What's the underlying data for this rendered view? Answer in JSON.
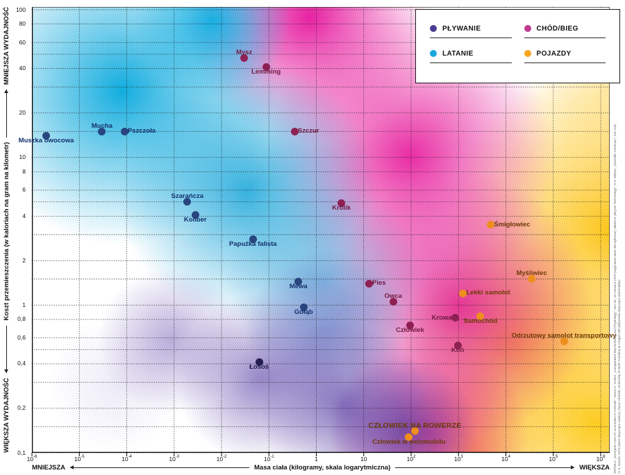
{
  "chart_data": {
    "type": "scatter",
    "title": "",
    "x_axis": {
      "label": "Masa ciała (kilogramy, skala logarytmiczna)",
      "arrow_min_label": "MNIEJSZA",
      "arrow_max_label": "WIĘKSZA",
      "scale": "log",
      "log_range": [
        -6,
        6
      ],
      "ticks": [
        {
          "base": "10",
          "exp": "-6",
          "log": -6
        },
        {
          "base": "10",
          "exp": "-5",
          "log": -5
        },
        {
          "base": "10",
          "exp": "-4",
          "log": -4
        },
        {
          "base": "10",
          "exp": "-3",
          "log": -3
        },
        {
          "base": "10",
          "exp": "-2",
          "log": -2
        },
        {
          "base": "10",
          "exp": "-1",
          "log": -1
        },
        {
          "base": "1",
          "exp": "",
          "log": 0
        },
        {
          "base": "10",
          "exp": "",
          "log": 1
        },
        {
          "base": "10",
          "exp": "2",
          "log": 2
        },
        {
          "base": "10",
          "exp": "3",
          "log": 3
        },
        {
          "base": "10",
          "exp": "4",
          "log": 4
        },
        {
          "base": "10",
          "exp": "5",
          "log": 5
        },
        {
          "base": "10",
          "exp": "6",
          "log": 6
        }
      ]
    },
    "y_axis": {
      "label": "Koszt przemieszczenia (w kaloriach na gram na kilometr)",
      "arrow_top_label": "MNIEJSZA WYDAJNOŚĆ",
      "arrow_bottom_label": "WIĘKSZA WYDAJNOŚĆ",
      "scale": "log",
      "range": [
        0.1,
        100
      ],
      "ticks": [
        {
          "label": "100",
          "value": 100
        },
        {
          "label": "80",
          "value": 80
        },
        {
          "label": "60",
          "value": 60
        },
        {
          "label": "40",
          "value": 40
        },
        {
          "label": "20",
          "value": 20
        },
        {
          "label": "10",
          "value": 10
        },
        {
          "label": "8",
          "value": 8
        },
        {
          "label": "6",
          "value": 6
        },
        {
          "label": "4",
          "value": 4
        },
        {
          "label": "2",
          "value": 2
        },
        {
          "label": "1",
          "value": 1
        },
        {
          "label": "0,8",
          "value": 0.8
        },
        {
          "label": "0,6",
          "value": 0.6
        },
        {
          "label": "0,4",
          "value": 0.4
        },
        {
          "label": "0,2",
          "value": 0.2
        },
        {
          "label": "0,1",
          "value": 0.1
        }
      ],
      "grid_values": [
        100,
        80,
        60,
        50,
        40,
        30,
        20,
        15,
        10,
        8,
        6,
        5,
        4,
        3,
        2,
        1.5,
        1,
        0.8,
        0.6,
        0.5,
        0.4,
        0.3,
        0.2,
        0.15,
        0.1
      ]
    },
    "categories": [
      {
        "id": "plywanie",
        "label": "PŁYWANIE",
        "legend_color": "#4c3d91",
        "dot_color": "#23204f",
        "label_color": "#1d1a47"
      },
      {
        "id": "chod-bieg",
        "label": "CHÓD/BIEG",
        "legend_color": "#c23b92",
        "dot_color": "#8e2053",
        "label_color": "#701a42"
      },
      {
        "id": "latanie",
        "label": "LATANIE",
        "legend_color": "#18a6dc",
        "dot_color": "#28457f",
        "label_color": "#14306b"
      },
      {
        "id": "pojazdy",
        "label": "POJAZDY",
        "legend_color": "#f8a61e",
        "dot_color": "#ee8f1d",
        "label_color": "#6e3a07"
      }
    ],
    "points": [
      {
        "name": "Muszka owocowa",
        "mass_kg": 2e-06,
        "cost": 14,
        "category": "latanie",
        "label_pos": "below"
      },
      {
        "name": "Mucha",
        "mass_kg": 3e-05,
        "cost": 15,
        "category": "latanie",
        "label_pos": "above"
      },
      {
        "name": "Pszczoła",
        "mass_kg": 9e-05,
        "cost": 15,
        "category": "latanie",
        "label_pos": "right"
      },
      {
        "name": "Szarańcza",
        "mass_kg": 0.0019,
        "cost": 5.0,
        "category": "latanie",
        "label_pos": "above"
      },
      {
        "name": "Koliber",
        "mass_kg": 0.0028,
        "cost": 4.1,
        "category": "latanie",
        "label_pos": "below"
      },
      {
        "name": "Papużka falista",
        "mass_kg": 0.046,
        "cost": 2.8,
        "category": "latanie",
        "label_pos": "below"
      },
      {
        "name": "Mewa",
        "mass_kg": 0.42,
        "cost": 1.45,
        "category": "latanie",
        "label_pos": "below"
      },
      {
        "name": "Gołąb",
        "mass_kg": 0.54,
        "cost": 0.97,
        "category": "latanie",
        "label_pos": "below"
      },
      {
        "name": "Mysz",
        "mass_kg": 0.03,
        "cost": 47,
        "category": "chod-bieg",
        "label_pos": "above"
      },
      {
        "name": "Lemming",
        "mass_kg": 0.087,
        "cost": 41,
        "category": "chod-bieg",
        "label_pos": "below"
      },
      {
        "name": "Szczur",
        "mass_kg": 0.35,
        "cost": 15,
        "category": "chod-bieg",
        "label_pos": "right"
      },
      {
        "name": "Królik",
        "mass_kg": 3.4,
        "cost": 4.9,
        "category": "chod-bieg",
        "label_pos": "below"
      },
      {
        "name": "Pies",
        "mass_kg": 13,
        "cost": 1.4,
        "category": "chod-bieg",
        "label_pos": "right"
      },
      {
        "name": "Owca",
        "mass_kg": 42,
        "cost": 1.05,
        "category": "chod-bieg",
        "label_pos": "above"
      },
      {
        "name": "Człowiek",
        "mass_kg": 95,
        "cost": 0.73,
        "category": "chod-bieg",
        "label_pos": "below"
      },
      {
        "name": "Krowa",
        "mass_kg": 840,
        "cost": 0.82,
        "category": "chod-bieg",
        "label_pos": "left"
      },
      {
        "name": "Koń",
        "mass_kg": 960,
        "cost": 0.53,
        "category": "chod-bieg",
        "label_pos": "below"
      },
      {
        "name": "Łosoś",
        "mass_kg": 0.062,
        "cost": 0.41,
        "category": "plywanie",
        "label_pos": "below"
      },
      {
        "name": "Śmigłowiec",
        "mass_kg": 4800,
        "cost": 3.5,
        "category": "pojazdy",
        "label_pos": "right"
      },
      {
        "name": "Lekki samolot",
        "mass_kg": 1250,
        "cost": 1.2,
        "category": "pojazdy",
        "label_pos": "right"
      },
      {
        "name": "Myśliwiec",
        "mass_kg": 35000,
        "cost": 1.5,
        "category": "pojazdy",
        "label_pos": "above"
      },
      {
        "name": "Samochód",
        "mass_kg": 2900,
        "cost": 0.84,
        "category": "pojazdy",
        "label_pos": "below"
      },
      {
        "name": "Odrzutowy samolot transportowy",
        "mass_kg": 168000,
        "cost": 0.57,
        "category": "pojazdy",
        "label_pos": "above"
      },
      {
        "name": "CZŁOWIEK NA ROWERZE",
        "mass_kg": 120,
        "cost": 0.14,
        "category": "pojazdy",
        "label_pos": "above",
        "emphasis": true
      },
      {
        "name": "Człowiek w welomobilu",
        "mass_kg": 90,
        "cost": 0.128,
        "category": "pojazdy",
        "label_pos": "below"
      }
    ]
  },
  "source_note": {
    "text": "ŹRÓDŁA: „Energetic Cost of Locomotion in Animals”, Vance A. Tucker, „Comparative Biochemistry and Physiology”, tom 34, 15 czerwca 1970 (wyjściowe dane dla wykresu); tabela w „Bicycle Technology”, S.S. Wilson, „Scientific American”, tom 228, nr 3, marzec 1973 (dane dotyczące roweru); Tyson Hedrick, University of North Carolina at Chapel Hill (obliczenia dotyczące welomobilu)."
  }
}
